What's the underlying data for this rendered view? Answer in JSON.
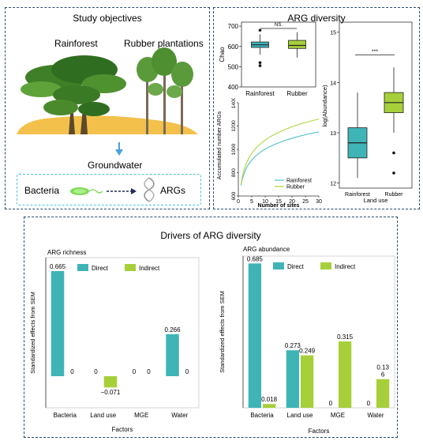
{
  "study": {
    "title": "Study objectives",
    "rainforest_label": "Rainforest",
    "rubber_label": "Rubber plantations",
    "groundwater_label": "Groundwater",
    "bacteria_label": "Bacteria",
    "args_label": "ARGs"
  },
  "arg_diversity": {
    "title": "ARG diversity",
    "chao_box": {
      "ylabel": "Chao",
      "yticks": [
        "700",
        "600",
        "500",
        "400"
      ],
      "categories": [
        "Rainforest",
        "Rubber"
      ],
      "sig_label": "NS.",
      "boxes": [
        {
          "q1": 595,
          "median": 608,
          "q3": 622,
          "whisker_low": 560,
          "whisker_high": 660,
          "outliers": [
            680,
            520,
            505
          ]
        },
        {
          "q1": 590,
          "median": 605,
          "q3": 630,
          "whisker_low": 545,
          "whisker_high": 670,
          "outliers": []
        }
      ],
      "ylim": [
        400,
        720
      ],
      "colors": [
        "#3fb4b7",
        "#a6cf3a"
      ]
    },
    "abundance_box": {
      "ylabel": "log(Abundance)",
      "xlabel": "Land use",
      "yticks": [
        "15",
        "14",
        "13",
        "12"
      ],
      "categories": [
        "Rainforest",
        "Rubber"
      ],
      "sig_label": "***",
      "boxes": [
        {
          "q1": 12.5,
          "median": 12.8,
          "q3": 13.1,
          "whisker_low": 12.1,
          "whisker_high": 13.8,
          "outliers": []
        },
        {
          "q1": 13.4,
          "median": 13.6,
          "q3": 13.8,
          "whisker_low": 13.0,
          "whisker_high": 14.3,
          "outliers": [
            12.6,
            12.2
          ]
        }
      ],
      "ylim": [
        11.9,
        15.2
      ],
      "colors": [
        "#3fb4b7",
        "#a6cf3a"
      ]
    },
    "accumulation": {
      "ylabel": "Accumulated number ARGs",
      "xlabel": "Number of sites",
      "yticks": [
        "600",
        "800",
        "1000",
        "1200",
        "1400"
      ],
      "xticks": [
        "0",
        "5",
        "10",
        "15",
        "20",
        "25",
        "30"
      ],
      "legend": [
        "Rainforest",
        "Rubber"
      ],
      "colors": [
        "#5fc6cf",
        "#b6d84f"
      ]
    }
  },
  "drivers": {
    "title": "Drivers of ARG diversity",
    "legend": {
      "direct": "Direct",
      "indirect": "Indirect"
    }
  },
  "chart_data": [
    {
      "type": "bar",
      "title": "ARG richness",
      "ylabel": "Standardized effects from SEM",
      "xlabel": "Factors",
      "categories": [
        "Bacteria",
        "Land use",
        "MGE",
        "Water"
      ],
      "series": [
        {
          "name": "Direct",
          "values": [
            0.665,
            0,
            0,
            0.266
          ],
          "labels": [
            "0.665",
            "0",
            "0",
            "0.266"
          ],
          "color": "#3fb4b7"
        },
        {
          "name": "Indirect",
          "values": [
            0,
            -0.071,
            0,
            0
          ],
          "labels": [
            "0",
            "−0.071",
            "0",
            "0"
          ],
          "color": "#a6cf3a"
        }
      ],
      "ylim": [
        -0.2,
        0.75
      ]
    },
    {
      "type": "bar",
      "title": "ARG abundance",
      "ylabel": "Standardized effects from SEM",
      "xlabel": "Factors",
      "categories": [
        "Bacteria",
        "Land use",
        "MGE",
        "Water"
      ],
      "series": [
        {
          "name": "Direct",
          "values": [
            0.685,
            0.273,
            0,
            0
          ],
          "labels": [
            "0.685",
            "0.273",
            "0",
            "0"
          ],
          "color": "#3fb4b7"
        },
        {
          "name": "Indirect",
          "values": [
            0.018,
            0.249,
            0.315,
            0.136
          ],
          "labels": [
            "0.018",
            "0.249",
            "0.315",
            "0.13\n6"
          ],
          "color": "#a6cf3a"
        }
      ],
      "ylim": [
        0,
        0.72
      ]
    }
  ]
}
